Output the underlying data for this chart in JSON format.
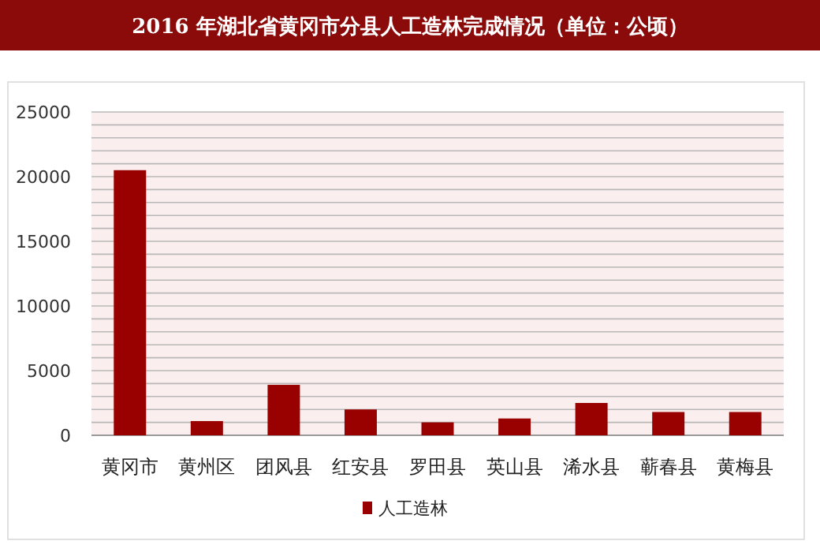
{
  "chart_data": {
    "type": "bar",
    "title": "2016 年湖北省黄冈市分县人工造林完成情况（单位：公顷）",
    "categories": [
      "黄冈市",
      "黄州区",
      "团风县",
      "红安县",
      "罗田县",
      "英山县",
      "浠水县",
      "蕲春县",
      "黄梅县"
    ],
    "series": [
      {
        "name": "人工造林",
        "color": "#990000",
        "values": [
          20500,
          1100,
          3900,
          2000,
          1000,
          1300,
          2500,
          1800,
          1800
        ]
      }
    ],
    "ylim": [
      0,
      25000
    ],
    "yticks": [
      0,
      {
        "value": 1000,
        "label": null
      },
      {
        "value": 2000,
        "label": null
      },
      {
        "value": 3000,
        "label": null
      },
      {
        "value": 4000,
        "label": null
      },
      5000,
      {
        "value": 6000,
        "label": null
      },
      {
        "value": 7000,
        "label": null
      },
      {
        "value": 8000,
        "label": null
      },
      {
        "value": 9000,
        "label": null
      },
      10000,
      {
        "value": 11000,
        "label": null
      },
      {
        "value": 12000,
        "label": null
      },
      {
        "value": 13000,
        "label": null
      },
      {
        "value": 14000,
        "label": null
      },
      15000,
      {
        "value": 16000,
        "label": null
      },
      {
        "value": 17000,
        "label": null
      },
      {
        "value": 18000,
        "label": null
      },
      {
        "value": 19000,
        "label": null
      },
      20000,
      {
        "value": 21000,
        "label": null
      },
      {
        "value": 22000,
        "label": null
      },
      {
        "value": 23000,
        "label": null
      },
      {
        "value": 24000,
        "label": null
      },
      25000
    ],
    "grid": "y",
    "legend": "bottom"
  }
}
